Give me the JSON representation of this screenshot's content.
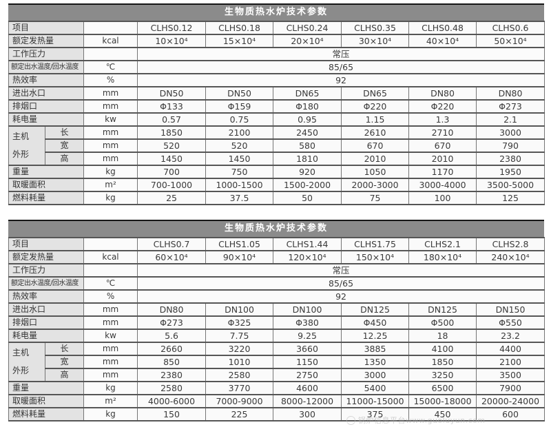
{
  "tables": [
    {
      "title": "生物质热水炉技术参数",
      "item_label": "项目",
      "group_label": [
        "主机",
        "外形"
      ],
      "columns": [
        "CLHS0.12",
        "CLHS0.18",
        "CLHS0.24",
        "CLHS0.35",
        "CLHS0.48",
        "CLHS0.6"
      ],
      "rows": [
        {
          "label": "额定发热量",
          "unit": "kcal",
          "values": [
            "10×10⁴",
            "15×10⁴",
            "20×10⁴",
            "30×10⁴",
            "40×10⁴",
            "50×10⁴"
          ]
        },
        {
          "label": "工作压力",
          "unit": "",
          "merged": "常压"
        },
        {
          "label": "额定出水温度/回水温度",
          "unit": "℃",
          "merged": "85/65",
          "small_label": true
        },
        {
          "label": "热效率",
          "unit": "%",
          "merged": "92"
        },
        {
          "label": "进出水口",
          "unit": "mm",
          "values": [
            "DN50",
            "DN50",
            "DN65",
            "DN65",
            "DN80",
            "DN80"
          ]
        },
        {
          "label": "排烟口",
          "unit": "mm",
          "values": [
            "Φ133",
            "Φ159",
            "Φ180",
            "Φ220",
            "Φ220",
            "Φ273"
          ]
        },
        {
          "label": "耗电量",
          "unit": "kw",
          "values": [
            "0.57",
            "0.75",
            "0.95",
            "1.15",
            "1.3",
            "2.1"
          ]
        },
        {
          "sub": "长",
          "unit": "mm",
          "group_start": true,
          "values": [
            "1850",
            "2100",
            "2450",
            "2610",
            "2710",
            "3000"
          ]
        },
        {
          "sub": "宽",
          "unit": "mm",
          "values": [
            "520",
            "520",
            "580",
            "670",
            "670",
            "790"
          ]
        },
        {
          "sub": "高",
          "unit": "mm",
          "values": [
            "1450",
            "1450",
            "1810",
            "2010",
            "2010",
            "2380"
          ]
        },
        {
          "label": "重量",
          "unit": "kg",
          "values": [
            "700",
            "750",
            "920",
            "1050",
            "1170",
            "1950"
          ]
        },
        {
          "label": "取暖面积",
          "unit": "m²",
          "values": [
            "700-1000",
            "1000-1500",
            "1500-2000",
            "2000-3000",
            "3000-4000",
            "3500-5000"
          ]
        },
        {
          "label": "燃料耗量",
          "unit": "kg",
          "values": [
            "25",
            "37.5",
            "50",
            "75",
            "100",
            "125"
          ]
        }
      ]
    },
    {
      "title": "生物质热水炉技术参数",
      "item_label": "项目",
      "group_label": [
        "主机",
        "外形"
      ],
      "columns": [
        "CLHS0.7",
        "CLHS1.05",
        "CLHS1.44",
        "CLHS1.75",
        "CLHS2.1",
        "CLHS2.8"
      ],
      "rows": [
        {
          "label": "额定发热量",
          "unit": "kcal",
          "values": [
            "60×10⁴",
            "90×10⁴",
            "120×10⁴",
            "150×10⁴",
            "180×10⁴",
            "240×10⁴"
          ]
        },
        {
          "label": "工作压力",
          "unit": "",
          "merged": "常压"
        },
        {
          "label": "额定出水温度/回水温度",
          "unit": "℃",
          "merged": "85/65",
          "small_label": true
        },
        {
          "label": "热效率",
          "unit": "%",
          "merged": "92"
        },
        {
          "label": "进出水口",
          "unit": "mm",
          "values": [
            "DN80",
            "DN100",
            "DN100",
            "DN125",
            "DN125",
            "DN150"
          ]
        },
        {
          "label": "排烟口",
          "unit": "mm",
          "values": [
            "Φ273",
            "Φ325",
            "Φ380",
            "Φ450",
            "Φ500",
            "Φ550"
          ]
        },
        {
          "label": "耗电量",
          "unit": "kw",
          "values": [
            "5.6",
            "7.75",
            "9.25",
            "12.25",
            "18",
            "23.2"
          ]
        },
        {
          "sub": "长",
          "unit": "mm",
          "group_start": true,
          "values": [
            "2660",
            "3220",
            "3660",
            "3885",
            "4100",
            "4400"
          ]
        },
        {
          "sub": "宽",
          "unit": "mm",
          "values": [
            "850",
            "1010",
            "1150",
            "1350",
            "1850",
            "2100"
          ]
        },
        {
          "sub": "高",
          "unit": "mm",
          "values": [
            "2380",
            "2580",
            "2750",
            "3000",
            "3250",
            "3500"
          ]
        },
        {
          "label": "重量",
          "unit": "kg",
          "values": [
            "2580",
            "3770",
            "4600",
            "5400",
            "6500",
            "7900"
          ]
        },
        {
          "label": "取暖面积",
          "unit": "m²",
          "values": [
            "4000-6000",
            "7000-9000",
            "8000-12000",
            "11000-15000",
            "15000-18000",
            "20000-24000"
          ]
        },
        {
          "label": "燃料耗量",
          "unit": "kg",
          "values": [
            "150",
            "225",
            "300",
            "375",
            "450",
            "600"
          ]
        }
      ]
    }
  ],
  "watermark": {
    "icon": "circle-logo",
    "text": "锅炉信息平台www.guoluyun.com"
  },
  "colors": {
    "banner_bg": "#8b8b8b",
    "banner_text": "#ffffff",
    "label_bg": "#e3e3e3",
    "cell_bg": "#fafafa",
    "border_dark": "#555555",
    "border_light": "#747474",
    "text": "#3a3a3a"
  }
}
